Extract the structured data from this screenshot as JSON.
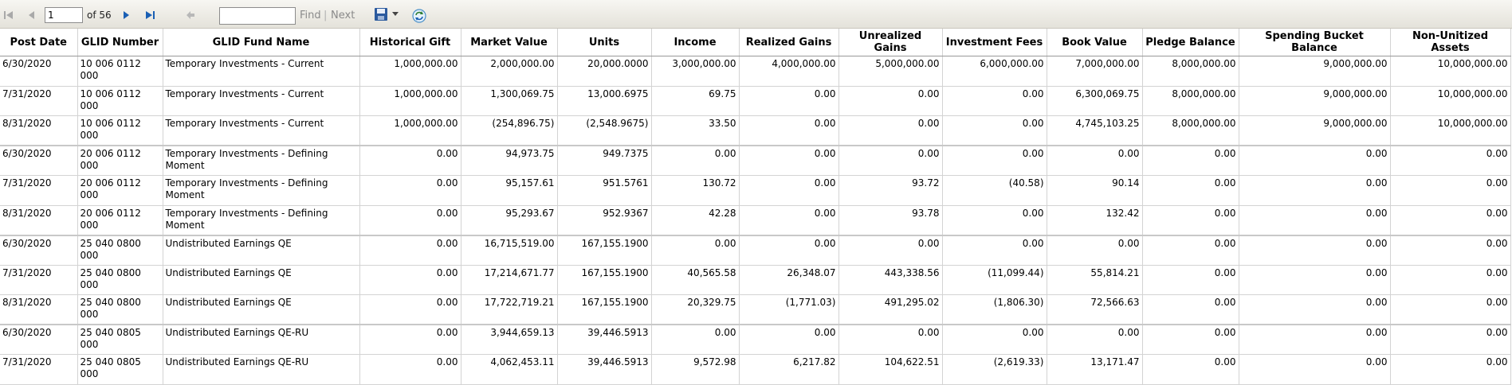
{
  "toolbar": {
    "page_value": "1",
    "of_text": "of 56",
    "find_label": "Find",
    "separator": "|",
    "next_label": "Next"
  },
  "table": {
    "columns": [
      "Post Date",
      "GLID Number",
      "GLID Fund Name",
      "Historical Gift",
      "Market Value",
      "Units",
      "Income",
      "Realized Gains",
      "Unrealized Gains",
      "Investment Fees",
      "Book Value",
      "Pledge Balance",
      "Spending Bucket Balance",
      "Non-Unitized Assets"
    ],
    "rows": [
      [
        "6/30/2020",
        "10  006  0112 000",
        "Temporary Investments - Current",
        "1,000,000.00",
        "2,000,000.00",
        "20,000.0000",
        "3,000,000.00",
        "4,000,000.00",
        "5,000,000.00",
        "6,000,000.00",
        "7,000,000.00",
        "8,000,000.00",
        "9,000,000.00",
        "10,000,000.00"
      ],
      [
        "7/31/2020",
        "10  006  0112 000",
        "Temporary Investments - Current",
        "1,000,000.00",
        "1,300,069.75",
        "13,000.6975",
        "69.75",
        "0.00",
        "0.00",
        "0.00",
        "6,300,069.75",
        "8,000,000.00",
        "9,000,000.00",
        "10,000,000.00"
      ],
      [
        "8/31/2020",
        "10  006  0112 000",
        "Temporary Investments - Current",
        "1,000,000.00",
        "(254,896.75)",
        "(2,548.9675)",
        "33.50",
        "0.00",
        "0.00",
        "0.00",
        "4,745,103.25",
        "8,000,000.00",
        "9,000,000.00",
        "10,000,000.00"
      ],
      [
        "6/30/2020",
        "20  006  0112 000",
        "Temporary Investments - Defining Moment",
        "0.00",
        "94,973.75",
        "949.7375",
        "0.00",
        "0.00",
        "0.00",
        "0.00",
        "0.00",
        "0.00",
        "0.00",
        "0.00"
      ],
      [
        "7/31/2020",
        "20  006  0112 000",
        "Temporary Investments - Defining Moment",
        "0.00",
        "95,157.61",
        "951.5761",
        "130.72",
        "0.00",
        "93.72",
        "(40.58)",
        "90.14",
        "0.00",
        "0.00",
        "0.00"
      ],
      [
        "8/31/2020",
        "20  006  0112 000",
        "Temporary Investments - Defining Moment",
        "0.00",
        "95,293.67",
        "952.9367",
        "42.28",
        "0.00",
        "93.78",
        "0.00",
        "132.42",
        "0.00",
        "0.00",
        "0.00"
      ],
      [
        "6/30/2020",
        "25  040  0800 000",
        "Undistributed Earnings QE",
        "0.00",
        "16,715,519.00",
        "167,155.1900",
        "0.00",
        "0.00",
        "0.00",
        "0.00",
        "0.00",
        "0.00",
        "0.00",
        "0.00"
      ],
      [
        "7/31/2020",
        "25  040  0800 000",
        "Undistributed Earnings QE",
        "0.00",
        "17,214,671.77",
        "167,155.1900",
        "40,565.58",
        "26,348.07",
        "443,338.56",
        "(11,099.44)",
        "55,814.21",
        "0.00",
        "0.00",
        "0.00"
      ],
      [
        "8/31/2020",
        "25  040  0800 000",
        "Undistributed Earnings QE",
        "0.00",
        "17,722,719.21",
        "167,155.1900",
        "20,329.75",
        "(1,771.03)",
        "491,295.02",
        "(1,806.30)",
        "72,566.63",
        "0.00",
        "0.00",
        "0.00"
      ],
      [
        "6/30/2020",
        "25  040  0805 000",
        "Undistributed Earnings QE-RU",
        "0.00",
        "3,944,659.13",
        "39,446.5913",
        "0.00",
        "0.00",
        "0.00",
        "0.00",
        "0.00",
        "0.00",
        "0.00",
        "0.00"
      ],
      [
        "7/31/2020",
        "25  040  0805 000",
        "Undistributed Earnings QE-RU",
        "0.00",
        "4,062,453.11",
        "39,446.5913",
        "9,572.98",
        "6,217.82",
        "104,622.51",
        "(2,619.33)",
        "13,171.47",
        "0.00",
        "0.00",
        "0.00"
      ]
    ]
  },
  "colors": {
    "accent": "#1a5fb4",
    "disabled": "#a9a9a9",
    "grid": "#d3d3d3"
  }
}
